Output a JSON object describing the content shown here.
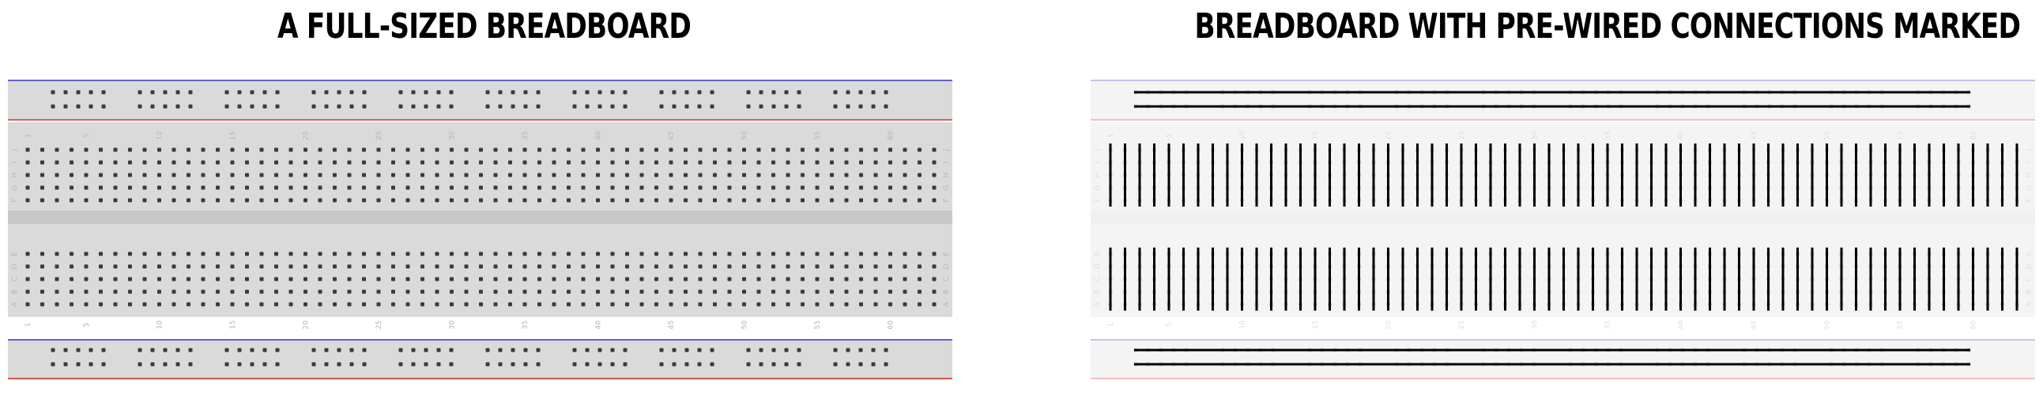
{
  "titles": {
    "left": "A FULL-SIZED BREADBOARD",
    "right": "BREADBOARD WITH PRE-WIRED CONNECTIONS MARKED"
  },
  "breadboard": {
    "columns": 63,
    "column_labels": [
      "1",
      "5",
      "10",
      "15",
      "20",
      "25",
      "30",
      "35",
      "40",
      "45",
      "50",
      "55",
      "60"
    ],
    "rows_top": [
      "J",
      "I",
      "H",
      "G",
      "F"
    ],
    "rows_bottom": [
      "E",
      "D",
      "C",
      "B",
      "A"
    ],
    "rail_groups": 10,
    "holes_per_rail_group": 5
  },
  "colors": {
    "board": "#dadada",
    "rail_plus": "#d9352f",
    "rail_minus": "#3c3ac4",
    "hole": "#3a3a3a",
    "label": "#b5b5b5",
    "channel": "#c7c7c7",
    "connection": "#000000",
    "faded_board": "#f4f4f4"
  }
}
